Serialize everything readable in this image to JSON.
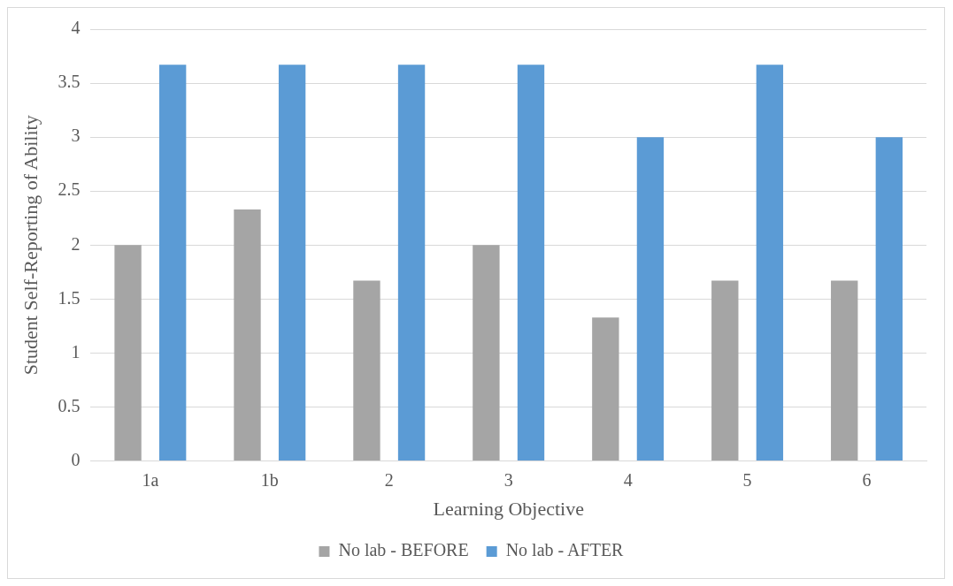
{
  "chart_data": {
    "type": "bar",
    "xlabel": "Learning Objective",
    "ylabel": "Student Self-Reporting of Ability",
    "categories": [
      "1a",
      "1b",
      "2",
      "3",
      "4",
      "5",
      "6"
    ],
    "series": [
      {
        "name": "No lab - BEFORE",
        "color": "#a5a5a5",
        "values": [
          2,
          2.33,
          1.67,
          2,
          1.33,
          1.67,
          1.67
        ]
      },
      {
        "name": "No lab - AFTER",
        "color": "#5b9bd5",
        "values": [
          3.67,
          3.67,
          3.67,
          3.67,
          3,
          3.67,
          3
        ]
      }
    ],
    "ylim": [
      0,
      4
    ],
    "yticks": [
      0,
      0.5,
      1,
      1.5,
      2,
      2.5,
      3,
      3.5,
      4
    ],
    "grid": "y",
    "legend": "bottom"
  }
}
